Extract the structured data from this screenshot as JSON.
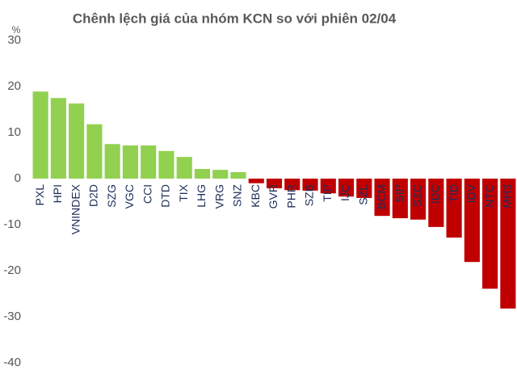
{
  "chart_data": {
    "type": "bar",
    "title": "Chênh lệch giá của nhóm KCN so với phiên 02/04",
    "y_unit": "%",
    "categories": [
      "PXL",
      "HPI",
      "VNINDEX",
      "D2D",
      "SZG",
      "VGC",
      "CCI",
      "DTD",
      "TIX",
      "LHG",
      "VRG",
      "SNZ",
      "KBC",
      "GVR",
      "PHR",
      "SZB",
      "TIP",
      "IJC",
      "SZL",
      "BCM",
      "SIP",
      "SZC",
      "IDC",
      "TID",
      "IDV",
      "NTC",
      "MH3"
    ],
    "values": [
      18.9,
      17.5,
      16.3,
      11.8,
      7.5,
      7.2,
      7.2,
      6.0,
      4.7,
      2.1,
      1.9,
      1.4,
      -1.0,
      -2.1,
      -2.5,
      -2.6,
      -3.2,
      -3.9,
      -4.2,
      -8.1,
      -8.6,
      -8.9,
      -10.5,
      -12.8,
      -18.1,
      -23.9,
      -28.2
    ],
    "positive_color": "#92d050",
    "negative_color": "#c00000",
    "ylim": [
      -40,
      30
    ],
    "yticks": [
      -40,
      -30,
      -20,
      -10,
      0,
      10,
      20,
      30
    ],
    "grid": false
  }
}
